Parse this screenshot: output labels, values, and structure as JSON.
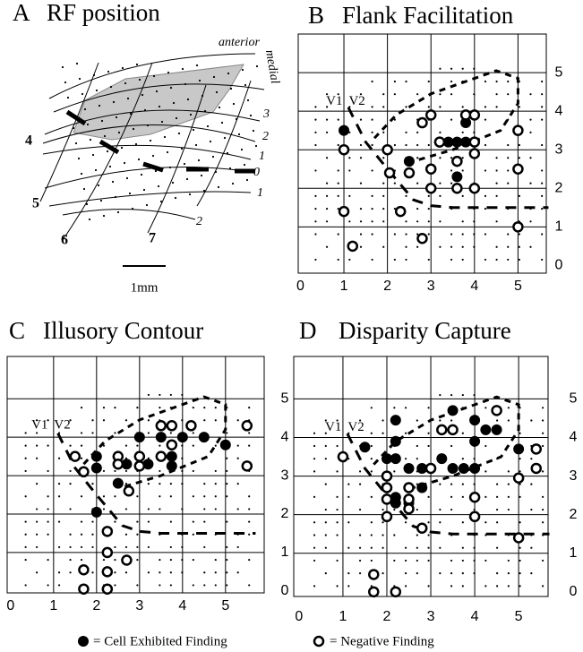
{
  "panel_a": {
    "letter": "A",
    "title": "RF position",
    "direction_labels": [
      "anterior",
      "medial"
    ],
    "contour_labels": [
      "3",
      "2",
      "1",
      "0",
      "1",
      "2"
    ],
    "region_labels": [
      "4",
      "5",
      "6",
      "7"
    ],
    "scale_label": "1mm"
  },
  "legend": [
    "= Cell Exhibited Finding",
    "= Negative Finding"
  ],
  "chart_data": [
    {
      "type": "scatter",
      "panel": "B",
      "title": "Flank Facilitation",
      "annotations": [
        "V1",
        "V2"
      ],
      "xlim": [
        -0.05,
        5.65
      ],
      "ylim": [
        -0.2,
        6.0
      ],
      "xticks": [
        0,
        1,
        2,
        3,
        4,
        5
      ],
      "yticks": [
        0,
        1,
        2,
        3,
        4,
        5
      ],
      "grid": true,
      "series": [
        {
          "marker": "filled",
          "color": "#000000",
          "x": [
            1,
            2.5,
            3.2,
            3.4,
            3.6,
            3.8,
            3.6,
            3.8
          ],
          "y": [
            3.5,
            2.7,
            3.2,
            3.2,
            3.2,
            3.7,
            2.3,
            3.2
          ]
        },
        {
          "marker": "open",
          "color": "#000000",
          "x": [
            1,
            1,
            1.2,
            2,
            2.05,
            2.3,
            2.5,
            2.8,
            2.8,
            3,
            3,
            3,
            3.2,
            3.6,
            3.6,
            3.8,
            4,
            4,
            4,
            4,
            5,
            5,
            5
          ],
          "y": [
            3,
            1.4,
            0.5,
            3,
            2.4,
            1.4,
            2.4,
            0.7,
            3.7,
            3.9,
            2.5,
            2,
            3.2,
            2,
            2.7,
            3.9,
            3.9,
            2.9,
            2,
            3.2,
            3.5,
            2.5,
            1
          ]
        }
      ]
    },
    {
      "type": "scatter",
      "panel": "C",
      "title": "Illusory Contour",
      "annotations": [
        "V1",
        "V2"
      ],
      "xlim": [
        -0.08,
        5.9
      ],
      "ylim": [
        -0.05,
        6.1
      ],
      "xticks": [
        0,
        1,
        2,
        3,
        4,
        5
      ],
      "yticks": [
        0,
        1,
        2,
        3,
        4,
        5
      ],
      "grid": true,
      "series": [
        {
          "marker": "filled",
          "color": "#000000",
          "x": [
            2,
            2,
            2.5,
            2.7,
            2.5,
            3,
            3,
            3.2,
            3.5,
            3.75,
            3.75,
            4,
            4.5,
            5,
            2
          ],
          "y": [
            3.5,
            3.2,
            3.3,
            3.3,
            2.8,
            4,
            3.5,
            3.3,
            4,
            3.5,
            3.25,
            4,
            4,
            3.8,
            2.05
          ]
        },
        {
          "marker": "open",
          "color": "#000000",
          "x": [
            1.5,
            1.7,
            2.5,
            2.5,
            2.75,
            3,
            3,
            3.5,
            3.75,
            3.5,
            3.75,
            4.2,
            5.5,
            5.5,
            2.25,
            2.25,
            2.25,
            2.7,
            1.7,
            1.7,
            2.25
          ],
          "y": [
            3.5,
            3.1,
            3.5,
            3.3,
            2.6,
            3.25,
            3.5,
            4.3,
            4.3,
            3.5,
            3.8,
            4.3,
            4.3,
            3.25,
            1.55,
            1,
            0.5,
            0.8,
            0.55,
            0.05,
            0.05
          ]
        }
      ]
    },
    {
      "type": "scatter",
      "panel": "D",
      "title": "Disparity Capture",
      "annotations": [
        "V1",
        "V2"
      ],
      "xlim": [
        -0.12,
        5.67
      ],
      "ylim": [
        -0.12,
        6.1
      ],
      "xticks": [
        0,
        1,
        2,
        3,
        4,
        5
      ],
      "yticks": [
        0,
        1,
        2,
        3,
        4,
        5
      ],
      "grid": true,
      "series": [
        {
          "marker": "filled",
          "color": "#000000",
          "x": [
            1.5,
            2.2,
            2.2,
            2.2,
            2,
            2.5,
            2.8,
            3,
            3.25,
            3.5,
            3.75,
            4,
            3.5,
            4,
            4,
            4.25,
            4.5,
            5,
            2,
            2.2,
            2.5,
            2.8,
            2.2,
            2.5
          ],
          "y": [
            3.75,
            4.45,
            3.9,
            3.45,
            3.45,
            3.2,
            3.2,
            3.2,
            3.45,
            3.2,
            3.2,
            3.2,
            4.7,
            4.45,
            3.9,
            4.2,
            4.2,
            3.7,
            2.7,
            2.45,
            2.7,
            2.7,
            2.3,
            2.3
          ]
        },
        {
          "marker": "open",
          "color": "#000000",
          "x": [
            1,
            2,
            2,
            2,
            2,
            2.5,
            2.5,
            2.5,
            3,
            2.8,
            3.25,
            3.5,
            4.5,
            4,
            4,
            5,
            5,
            5.4,
            5.4,
            1.7,
            1.7,
            2.2
          ],
          "y": [
            3.5,
            3,
            2.7,
            2.4,
            1.95,
            2.7,
            2.4,
            2.15,
            3.2,
            1.65,
            4.2,
            4.2,
            4.7,
            2.45,
            1.95,
            2.95,
            1.4,
            3.7,
            3.2,
            0.45,
            0,
            0
          ]
        }
      ]
    }
  ]
}
